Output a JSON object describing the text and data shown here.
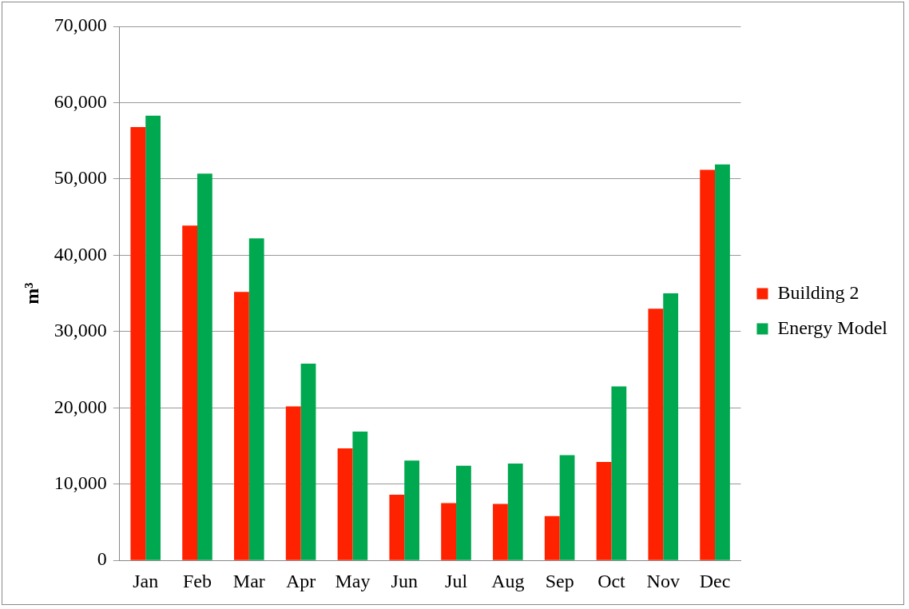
{
  "chart_data": {
    "type": "bar",
    "ylabel": "m³",
    "categories": [
      "Jan",
      "Feb",
      "Mar",
      "Apr",
      "May",
      "Jun",
      "Jul",
      "Aug",
      "Sep",
      "Oct",
      "Nov",
      "Dec"
    ],
    "series": [
      {
        "name": "Building 2",
        "color": "#ff2200",
        "values": [
          56800,
          43900,
          35200,
          20200,
          14700,
          8600,
          7500,
          7400,
          5800,
          12900,
          33000,
          51200
        ]
      },
      {
        "name": "Energy Model",
        "color": "#00a84f",
        "values": [
          58300,
          50700,
          42200,
          25800,
          16900,
          13100,
          12400,
          12700,
          13800,
          22800,
          35000,
          51900
        ]
      }
    ],
    "ylim": [
      0,
      70000
    ],
    "yticks": [
      {
        "value": 0,
        "label": "0"
      },
      {
        "value": 10000,
        "label": "10,000"
      },
      {
        "value": 20000,
        "label": "20,000"
      },
      {
        "value": 30000,
        "label": "30,000"
      },
      {
        "value": 40000,
        "label": "40,000"
      },
      {
        "value": 50000,
        "label": "50,000"
      },
      {
        "value": 60000,
        "label": "60,000"
      },
      {
        "value": 70000,
        "label": "70,000"
      }
    ],
    "grid": "y",
    "legend": "right"
  }
}
